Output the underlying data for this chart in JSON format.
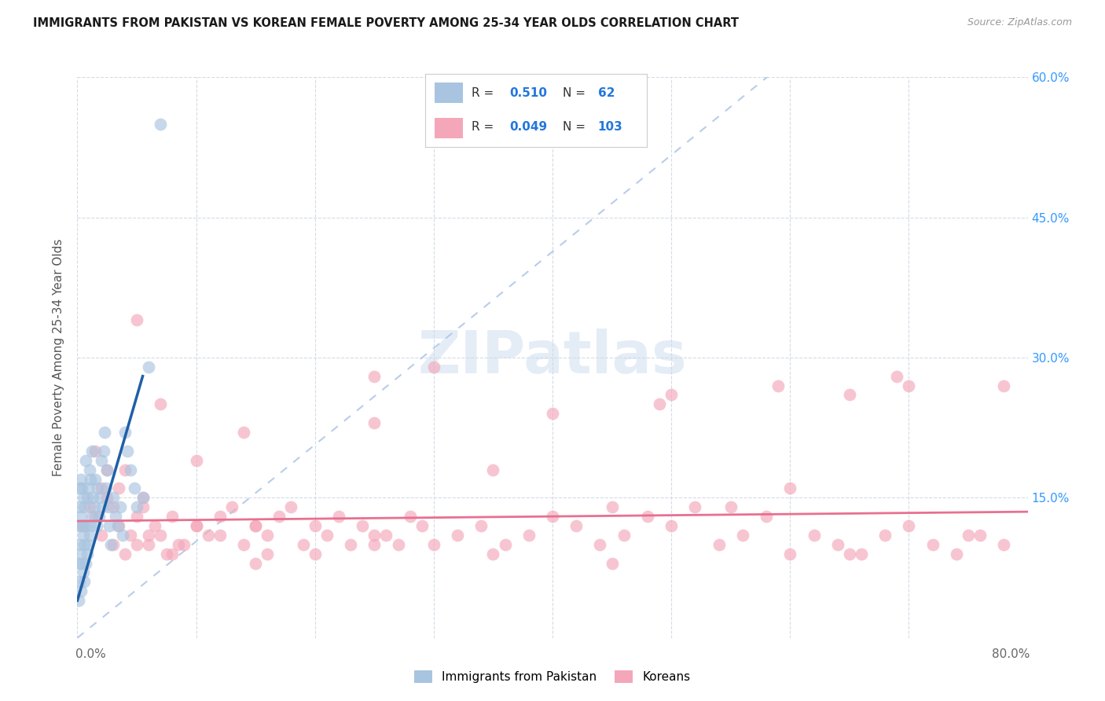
{
  "title": "IMMIGRANTS FROM PAKISTAN VS KOREAN FEMALE POVERTY AMONG 25-34 YEAR OLDS CORRELATION CHART",
  "source": "Source: ZipAtlas.com",
  "ylabel": "Female Poverty Among 25-34 Year Olds",
  "xlim": [
    0,
    0.8
  ],
  "ylim": [
    0,
    0.6
  ],
  "pakistan_R": 0.51,
  "pakistan_N": 62,
  "korean_R": 0.049,
  "korean_N": 103,
  "pakistan_color": "#a8c4e0",
  "korean_color": "#f4a7b9",
  "pakistan_line_color": "#1f5fa6",
  "korean_line_color": "#e87090",
  "diag_line_color": "#b0c8e8",
  "background_color": "#ffffff",
  "grid_color": "#d0d8e4",
  "pakistan_x": [
    0.001,
    0.001,
    0.001,
    0.002,
    0.002,
    0.002,
    0.002,
    0.003,
    0.003,
    0.003,
    0.003,
    0.004,
    0.004,
    0.004,
    0.005,
    0.005,
    0.005,
    0.006,
    0.006,
    0.006,
    0.007,
    0.007,
    0.007,
    0.008,
    0.008,
    0.009,
    0.009,
    0.01,
    0.01,
    0.011,
    0.011,
    0.012,
    0.012,
    0.013,
    0.014,
    0.015,
    0.016,
    0.017,
    0.018,
    0.019,
    0.02,
    0.021,
    0.022,
    0.023,
    0.024,
    0.025,
    0.026,
    0.027,
    0.028,
    0.03,
    0.032,
    0.034,
    0.036,
    0.038,
    0.04,
    0.042,
    0.045,
    0.048,
    0.05,
    0.055,
    0.06,
    0.07
  ],
  "pakistan_y": [
    0.04,
    0.08,
    0.12,
    0.06,
    0.1,
    0.14,
    0.16,
    0.05,
    0.09,
    0.13,
    0.17,
    0.08,
    0.12,
    0.16,
    0.07,
    0.11,
    0.15,
    0.06,
    0.1,
    0.14,
    0.08,
    0.12,
    0.19,
    0.09,
    0.15,
    0.1,
    0.16,
    0.11,
    0.18,
    0.12,
    0.17,
    0.13,
    0.2,
    0.15,
    0.14,
    0.17,
    0.12,
    0.16,
    0.13,
    0.15,
    0.19,
    0.14,
    0.2,
    0.22,
    0.16,
    0.18,
    0.14,
    0.12,
    0.1,
    0.15,
    0.13,
    0.12,
    0.14,
    0.11,
    0.22,
    0.2,
    0.18,
    0.16,
    0.14,
    0.15,
    0.29,
    0.55
  ],
  "korean_x": [
    0.005,
    0.01,
    0.015,
    0.02,
    0.025,
    0.03,
    0.035,
    0.04,
    0.045,
    0.05,
    0.055,
    0.06,
    0.065,
    0.07,
    0.075,
    0.08,
    0.09,
    0.1,
    0.11,
    0.12,
    0.13,
    0.14,
    0.15,
    0.16,
    0.17,
    0.18,
    0.19,
    0.2,
    0.21,
    0.22,
    0.23,
    0.24,
    0.25,
    0.26,
    0.27,
    0.28,
    0.29,
    0.3,
    0.32,
    0.34,
    0.36,
    0.38,
    0.4,
    0.42,
    0.44,
    0.46,
    0.48,
    0.5,
    0.52,
    0.54,
    0.56,
    0.58,
    0.6,
    0.62,
    0.64,
    0.66,
    0.68,
    0.7,
    0.72,
    0.74,
    0.76,
    0.78,
    0.015,
    0.025,
    0.035,
    0.055,
    0.07,
    0.085,
    0.1,
    0.12,
    0.14,
    0.16,
    0.25,
    0.3,
    0.35,
    0.4,
    0.45,
    0.5,
    0.6,
    0.65,
    0.7,
    0.75,
    0.02,
    0.03,
    0.04,
    0.05,
    0.06,
    0.08,
    0.1,
    0.15,
    0.2,
    0.25,
    0.35,
    0.45,
    0.55,
    0.65,
    0.05,
    0.15,
    0.25,
    0.49,
    0.59,
    0.69,
    0.78
  ],
  "korean_y": [
    0.12,
    0.14,
    0.13,
    0.11,
    0.15,
    0.1,
    0.12,
    0.09,
    0.11,
    0.13,
    0.14,
    0.1,
    0.12,
    0.11,
    0.09,
    0.13,
    0.1,
    0.12,
    0.11,
    0.13,
    0.14,
    0.1,
    0.12,
    0.11,
    0.13,
    0.14,
    0.1,
    0.12,
    0.11,
    0.13,
    0.1,
    0.12,
    0.28,
    0.11,
    0.1,
    0.13,
    0.12,
    0.1,
    0.11,
    0.12,
    0.1,
    0.11,
    0.13,
    0.12,
    0.1,
    0.11,
    0.13,
    0.12,
    0.14,
    0.1,
    0.11,
    0.13,
    0.09,
    0.11,
    0.1,
    0.09,
    0.11,
    0.12,
    0.1,
    0.09,
    0.11,
    0.1,
    0.2,
    0.18,
    0.16,
    0.15,
    0.25,
    0.1,
    0.19,
    0.11,
    0.22,
    0.09,
    0.23,
    0.29,
    0.18,
    0.24,
    0.14,
    0.26,
    0.16,
    0.26,
    0.27,
    0.11,
    0.16,
    0.14,
    0.18,
    0.1,
    0.11,
    0.09,
    0.12,
    0.08,
    0.09,
    0.1,
    0.09,
    0.08,
    0.14,
    0.09,
    0.34,
    0.12,
    0.11,
    0.25,
    0.27,
    0.28,
    0.27
  ]
}
